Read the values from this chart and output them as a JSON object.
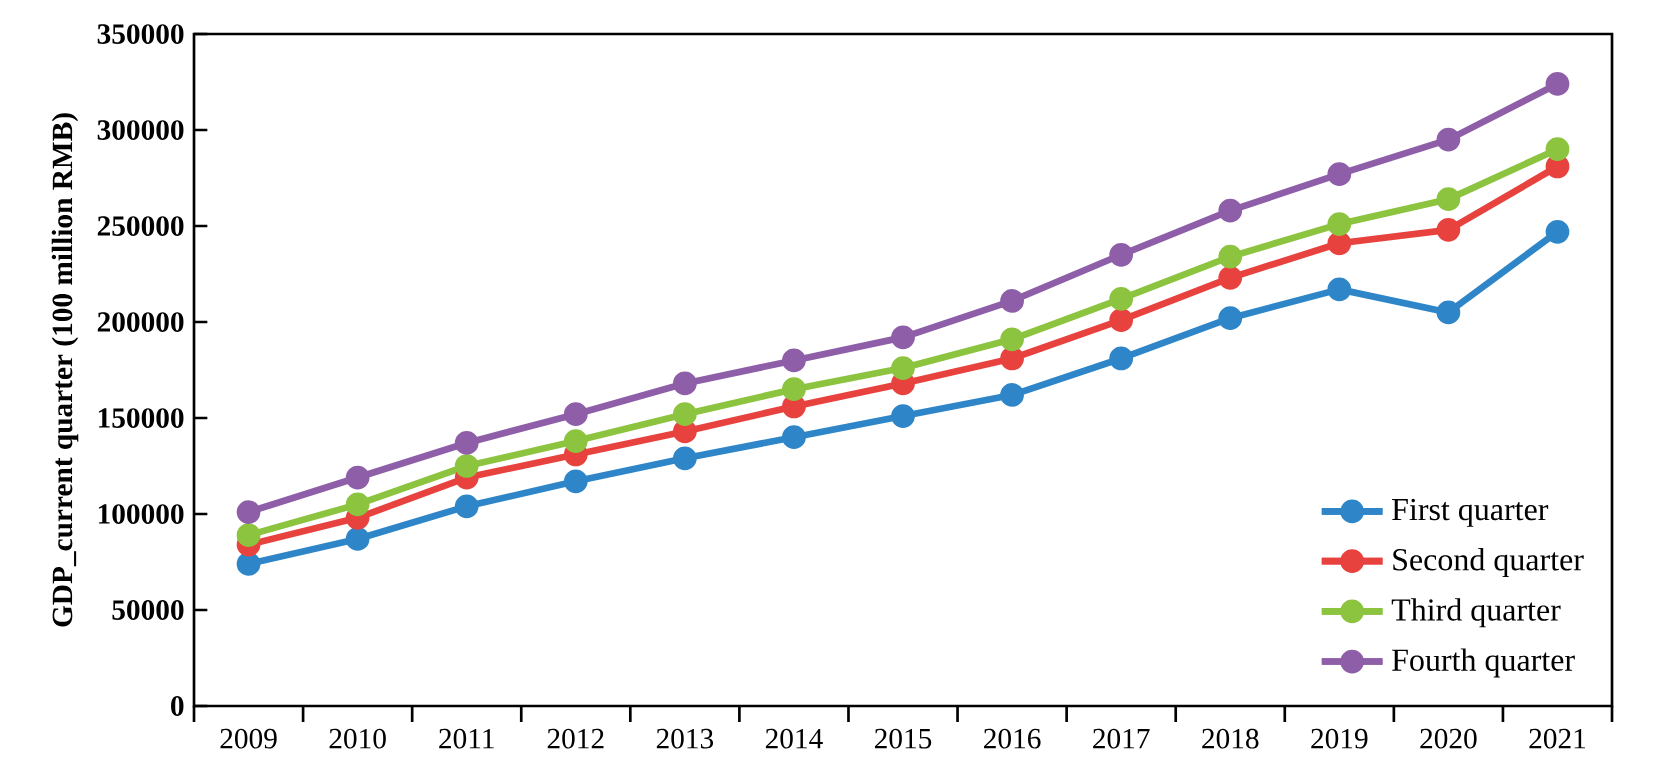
{
  "chart_data": {
    "type": "line",
    "ylabel": "GDP_current quarter (100 million RMB)",
    "categories": [
      "2009",
      "2010",
      "2011",
      "2012",
      "2013",
      "2014",
      "2015",
      "2016",
      "2017",
      "2018",
      "2019",
      "2020",
      "2021"
    ],
    "series": [
      {
        "name": "First quarter",
        "color": "#2e86c8",
        "values": [
          74000,
          87000,
          104000,
          117000,
          129000,
          140000,
          151000,
          162000,
          181000,
          202000,
          217000,
          205000,
          247000
        ]
      },
      {
        "name": "Second quarter",
        "color": "#e8423f",
        "values": [
          84000,
          98000,
          119000,
          131000,
          143000,
          156000,
          168000,
          181000,
          201000,
          223000,
          241000,
          248000,
          281000
        ]
      },
      {
        "name": "Third quarter",
        "color": "#8cc43f",
        "values": [
          89000,
          105000,
          125000,
          138000,
          152000,
          165000,
          176000,
          191000,
          212000,
          234000,
          251000,
          264000,
          290000
        ]
      },
      {
        "name": "Fourth quarter",
        "color": "#8e5ea8",
        "values": [
          101000,
          119000,
          137000,
          152000,
          168000,
          180000,
          192000,
          211000,
          235000,
          258000,
          277000,
          295000,
          324000
        ]
      }
    ],
    "ylim": [
      0,
      350000
    ],
    "yticks": [
      0,
      50000,
      100000,
      150000,
      200000,
      250000,
      300000,
      350000
    ],
    "grid": false,
    "legend": "bottom right",
    "marker": "circle",
    "line_style": "solid"
  }
}
